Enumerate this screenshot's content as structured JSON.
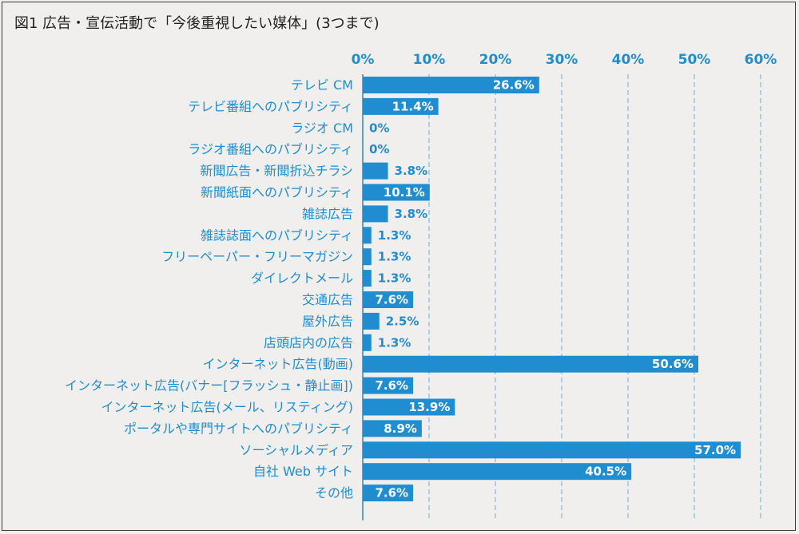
{
  "title": "図1 広告・宣伝活動で「今後重視したい媒体」(3つまで)",
  "colors": {
    "bar": "#1f8dd0",
    "label": "#1f8dd0",
    "axis": "#1f8dd0",
    "grid": "#6aaedb",
    "value_inside": "#ffffff",
    "value_outside": "#1f8dd0"
  },
  "chart_data": {
    "type": "bar",
    "orientation": "horizontal",
    "title": "図1 広告・宣伝活動で「今後重視したい媒体」(3つまで)",
    "xlim": [
      0,
      60
    ],
    "x_ticks": [
      "0%",
      "10%",
      "20%",
      "30%",
      "40%",
      "50%",
      "60%"
    ],
    "x_tick_values": [
      0,
      10,
      20,
      30,
      40,
      50,
      60
    ],
    "grid": true,
    "categories": [
      "テレビ CM",
      "テレビ番組へのパブリシティ",
      "ラジオ CM",
      "ラジオ番組へのパブリシティ",
      "新聞広告・新聞折込チラシ",
      "新聞紙面へのパブリシティ",
      "雑誌広告",
      "雑誌誌面へのパブリシティ",
      "フリーペーパー・フリーマガジン",
      "ダイレクトメール",
      "交通広告",
      "屋外広告",
      "店頭店内の広告",
      "インターネット広告(動画)",
      "インターネット広告(バナー[フラッシュ・静止画])",
      "インターネット広告(メール、リスティング)",
      "ポータルや専門サイトへのパブリシティ",
      "ソーシャルメディア",
      "自社 Web サイト",
      "その他"
    ],
    "values": [
      26.6,
      11.4,
      0,
      0,
      3.8,
      10.1,
      3.8,
      1.3,
      1.3,
      1.3,
      7.6,
      2.5,
      1.3,
      50.6,
      7.6,
      13.9,
      8.9,
      57.0,
      40.5,
      7.6
    ],
    "value_labels": [
      "26.6%",
      "11.4%",
      "0%",
      "0%",
      "3.8%",
      "10.1%",
      "3.8%",
      "1.3%",
      "1.3%",
      "1.3%",
      "7.6%",
      "2.5%",
      "1.3%",
      "50.6%",
      "7.6%",
      "13.9%",
      "8.9%",
      "57.0%",
      "40.5%",
      "7.6%"
    ]
  }
}
